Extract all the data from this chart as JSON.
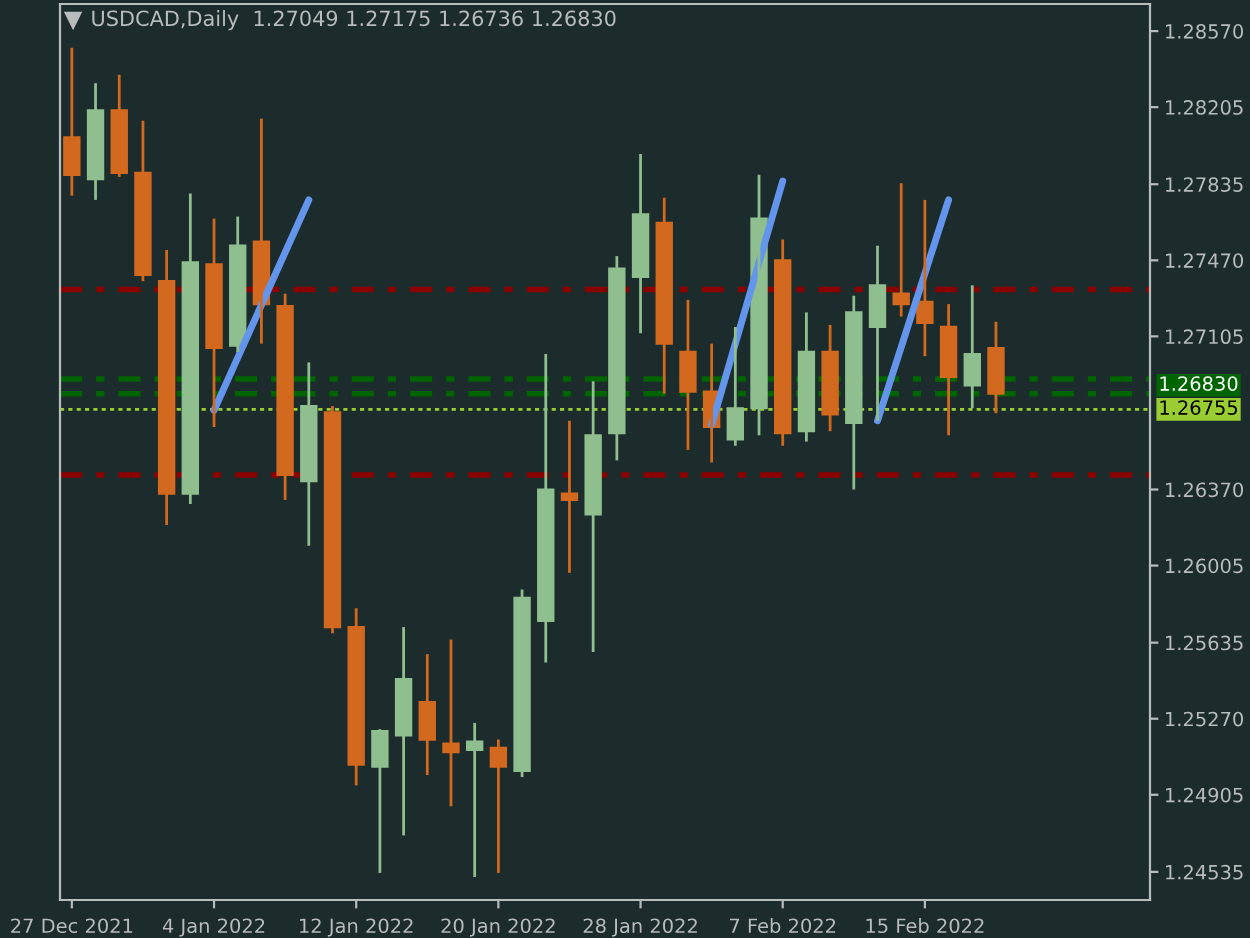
{
  "chart_data": {
    "type": "candlestick",
    "title": "USDCAD,Daily  1.27049 1.27175 1.26736 1.26830",
    "categories": [
      "27 Dec 2021",
      null,
      null,
      null,
      null,
      null,
      "4 Jan 2022",
      null,
      null,
      null,
      null,
      null,
      "12 Jan 2022",
      null,
      null,
      null,
      null,
      null,
      "20 Jan 2022",
      null,
      null,
      null,
      null,
      null,
      "28 Jan 2022",
      null,
      null,
      null,
      null,
      null,
      "7 Feb 2022",
      null,
      null,
      null,
      null,
      null,
      "15 Feb 2022",
      null,
      null,
      null,
      null,
      null,
      null,
      null,
      null,
      null
    ],
    "ohlc": [
      [
        1.2806,
        1.2849,
        1.2778,
        1.2788
      ],
      [
        1.2786,
        1.2832,
        1.2776,
        1.2819
      ],
      [
        1.2819,
        1.2836,
        1.2787,
        1.2789
      ],
      [
        1.2789,
        1.2814,
        1.2737,
        1.274
      ],
      [
        1.2737,
        1.2752,
        1.262,
        1.2635
      ],
      [
        1.2635,
        1.2779,
        1.263,
        1.2746
      ],
      [
        1.2745,
        1.2767,
        1.2667,
        1.2705
      ],
      [
        1.2706,
        1.2768,
        1.2703,
        1.2754
      ],
      [
        1.2756,
        1.2815,
        1.2707,
        1.2726
      ],
      [
        1.2725,
        1.2731,
        1.2632,
        1.2644
      ],
      [
        1.2641,
        1.2698,
        1.261,
        1.2677
      ],
      [
        1.2674,
        1.2677,
        1.2568,
        1.2571
      ],
      [
        1.2571,
        1.258,
        1.2495,
        1.2505
      ],
      [
        1.2504,
        1.2522,
        1.2453,
        1.2521
      ],
      [
        1.2519,
        1.2571,
        1.2471,
        1.2546
      ],
      [
        1.2535,
        1.2558,
        1.25,
        1.2517
      ],
      [
        1.2515,
        1.2565,
        1.2485,
        1.2511
      ],
      [
        1.2512,
        1.2525,
        1.2451,
        1.2516
      ],
      [
        1.2513,
        1.2517,
        1.2453,
        1.2504
      ],
      [
        1.2502,
        1.2589,
        1.2499,
        1.2585
      ],
      [
        1.2574,
        1.2702,
        1.2554,
        1.2637
      ],
      [
        1.2635,
        1.267,
        1.2597,
        1.2632
      ],
      [
        1.2625,
        1.2689,
        1.2559,
        1.2663
      ],
      [
        1.2664,
        1.2749,
        1.2651,
        1.2743
      ],
      [
        1.2739,
        1.2798,
        1.2712,
        1.2769
      ],
      [
        1.2765,
        1.2777,
        1.2683,
        1.2707
      ],
      [
        1.2703,
        1.2728,
        1.2656,
        1.2684
      ],
      [
        1.2684,
        1.2707,
        1.265,
        1.2667
      ],
      [
        1.2661,
        1.2715,
        1.2658,
        1.2676
      ],
      [
        1.2676,
        1.2788,
        1.2663,
        1.2767
      ],
      [
        1.2747,
        1.2757,
        1.2658,
        1.2664
      ],
      [
        1.2665,
        1.2722,
        1.266,
        1.2703
      ],
      [
        1.2703,
        1.2716,
        1.2665,
        1.2673
      ],
      [
        1.2669,
        1.273,
        1.2637,
        1.2722
      ],
      [
        1.2715,
        1.2754,
        1.267,
        1.2735
      ],
      [
        1.2731,
        1.2784,
        1.272,
        1.2726
      ],
      [
        1.2727,
        1.2776,
        1.2701,
        1.2717
      ],
      [
        1.2715,
        1.2726,
        1.2663,
        1.2691
      ],
      [
        1.2687,
        1.2735,
        1.2676,
        1.2702
      ],
      [
        1.27049,
        1.27175,
        1.26736,
        1.2683
      ],
      null,
      null,
      null,
      null,
      null,
      null
    ],
    "colors": [
      "#d2691e",
      "#8fbf8f",
      "#d2691e",
      "#d2691e",
      "#d2691e",
      "#8fbf8f",
      "#d2691e",
      "#8fbf8f",
      "#d2691e",
      "#d2691e",
      "#8fbf8f",
      "#d2691e",
      "#d2691e",
      "#8fbf8f",
      "#8fbf8f",
      "#d2691e",
      "#d2691e",
      "#8fbf8f",
      "#d2691e",
      "#8fbf8f",
      "#8fbf8f",
      "#d2691e",
      "#8fbf8f",
      "#8fbf8f",
      "#8fbf8f",
      "#d2691e",
      "#d2691e",
      "#d2691e",
      "#8fbf8f",
      "#8fbf8f",
      "#d2691e",
      "#8fbf8f",
      "#d2691e",
      "#8fbf8f",
      "#8fbf8f",
      "#d2691e",
      "#d2691e",
      "#d2691e",
      "#8fbf8f",
      "#d2691e",
      null,
      null,
      null,
      null,
      null,
      null
    ],
    "series": [
      {
        "type": "line",
        "color": "#6495ed",
        "values": [
          null,
          null,
          null,
          null,
          null,
          null,
          1.2675,
          null,
          null,
          null,
          1.2776,
          null,
          null,
          null,
          null,
          null,
          null,
          null,
          null,
          null,
          null,
          null,
          null,
          null,
          null,
          null,
          null,
          null,
          null,
          null,
          null,
          null,
          null,
          null,
          null,
          null,
          null,
          null,
          null,
          null,
          null,
          null,
          null,
          null,
          null,
          null
        ]
      },
      {
        "type": "line",
        "color": "#6495ed",
        "values": [
          null,
          null,
          null,
          null,
          null,
          null,
          null,
          null,
          null,
          null,
          null,
          null,
          null,
          null,
          null,
          null,
          null,
          null,
          null,
          null,
          null,
          null,
          null,
          null,
          null,
          null,
          null,
          1.2668,
          null,
          null,
          1.2785,
          null,
          null,
          null,
          null,
          null,
          null,
          null,
          null,
          null,
          null,
          null,
          null,
          null,
          null,
          null
        ]
      },
      {
        "type": "line",
        "color": "#6495ed",
        "values": [
          null,
          null,
          null,
          null,
          null,
          null,
          null,
          null,
          null,
          null,
          null,
          null,
          null,
          null,
          null,
          null,
          null,
          null,
          null,
          null,
          null,
          null,
          null,
          null,
          null,
          null,
          null,
          null,
          null,
          null,
          null,
          null,
          null,
          null,
          1.267,
          null,
          null,
          1.2776,
          null,
          null,
          null,
          null,
          null,
          null,
          null,
          null
        ]
      }
    ],
    "ref_lines": [
      {
        "axis": "y",
        "value": 1.2733,
        "color": "#8b0000",
        "line_style": "dashdot"
      },
      {
        "axis": "y",
        "value": 1.2644,
        "color": "#8b0000",
        "line_style": "dashdot"
      },
      {
        "axis": "y",
        "value": 1.269,
        "color": "#006400",
        "line_style": "dashdot"
      },
      {
        "axis": "y",
        "value": 1.2683,
        "label": "1.26830",
        "color": "#006400",
        "line_style": "dashdot"
      },
      {
        "axis": "y",
        "value": 1.26755,
        "label": "1.26755",
        "color": "#9acd32",
        "line_style": "dotted"
      }
    ],
    "ylim": [
      1.244,
      1.287
    ],
    "yticks": [
      {
        "value": 1.2857,
        "label": "1.28570"
      },
      {
        "value": 1.28205,
        "label": "1.28205"
      },
      {
        "value": 1.27835,
        "label": "1.27835"
      },
      {
        "value": 1.2747,
        "label": "1.27470"
      },
      {
        "value": 1.27105,
        "label": "1.27105"
      },
      {
        "value": 1.2637,
        "label": "1.26370"
      },
      {
        "value": 1.26005,
        "label": "1.26005"
      },
      {
        "value": 1.25635,
        "label": "1.25635"
      },
      {
        "value": 1.2527,
        "label": "1.25270"
      },
      {
        "value": 1.24905,
        "label": "1.24905"
      },
      {
        "value": 1.24535,
        "label": "1.24535"
      }
    ],
    "grid": false,
    "legend": false
  }
}
